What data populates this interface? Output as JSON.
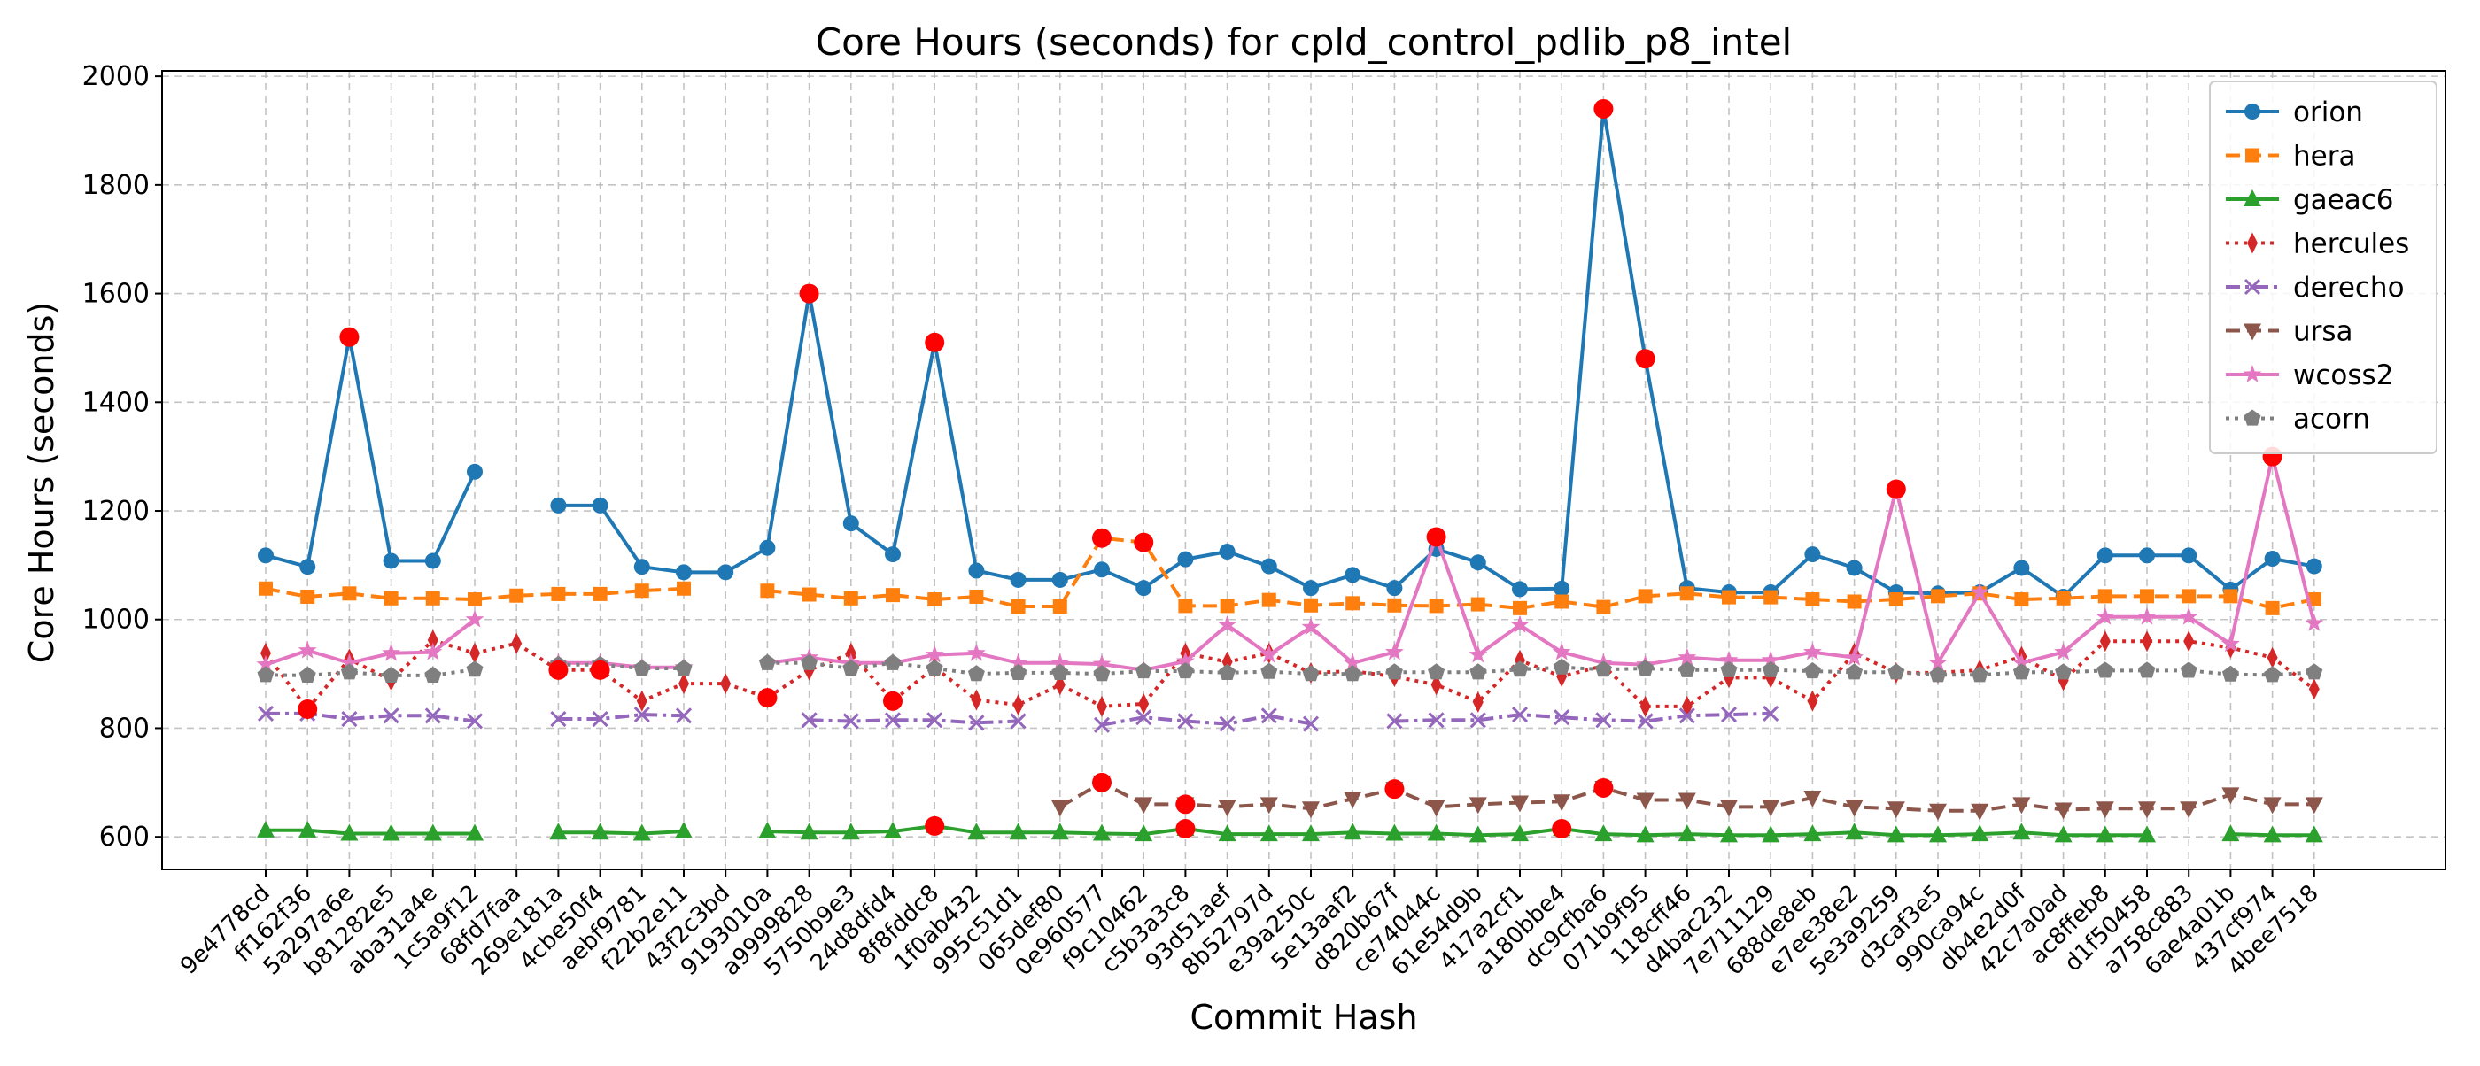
{
  "chart_data": {
    "type": "line",
    "title": "Core Hours (seconds) for cpld_control_pdlib_p8_intel",
    "xlabel": "Commit Hash",
    "ylabel": "Core Hours (seconds)",
    "ylim": [
      540,
      2010
    ],
    "yticks": [
      600,
      800,
      1000,
      1200,
      1400,
      1600,
      1800,
      2000
    ],
    "grid": true,
    "legend_position": "top-right",
    "categories": [
      "9e4778cd",
      "ff162f36",
      "5a297a6e",
      "b81282e5",
      "aba31a4e",
      "1c5a9f12",
      "68fd7faa",
      "269e181a",
      "4cbe50f4",
      "aebf9781",
      "f22b2e11",
      "43f2c3bd",
      "9193010a",
      "a9999828",
      "5750b9e3",
      "24d8dfd4",
      "8f8fddc8",
      "1f0ab432",
      "995c51d1",
      "065def80",
      "0e960577",
      "f9c10462",
      "c5b3a3c8",
      "93d51aef",
      "8b52797d",
      "e39a250c",
      "5e13aaf2",
      "d820b67f",
      "ce74044c",
      "61e54d9b",
      "417a2cf1",
      "a180bbe4",
      "dc9cfba6",
      "071b9f95",
      "118cff46",
      "d4bac232",
      "7e711129",
      "688de8eb",
      "e7ee38e2",
      "5e3a9259",
      "d3caf3e5",
      "990ca94c",
      "db4e2d0f",
      "42c7a0ad",
      "ac8ffeb8",
      "d1f50458",
      "a758c883",
      "6ae4a01b",
      "437cf974",
      "4bee7518"
    ],
    "series": [
      {
        "name": "orion",
        "color": "#1f77b4",
        "line": "solid",
        "marker": "circle",
        "values": [
          1118,
          1097,
          1520,
          1108,
          1108,
          1272,
          null,
          1210,
          1210,
          1097,
          1087,
          1087,
          1132,
          1600,
          1177,
          1120,
          1510,
          1090,
          1073,
          1073,
          1092,
          1058,
          1111,
          1125,
          1098,
          1058,
          1082,
          1058,
          1130,
          1105,
          1056,
          1057,
          1940,
          1480,
          1058,
          1050,
          1050,
          1120,
          1095,
          1050,
          1048,
          1050,
          1095,
          1042,
          1118,
          1118,
          1118,
          1055,
          1112,
          1098
        ],
        "anomalies": [
          2,
          13,
          16,
          32,
          33
        ]
      },
      {
        "name": "hera",
        "color": "#ff7f0e",
        "line": "dashed",
        "marker": "square",
        "values": [
          1057,
          1042,
          1048,
          1039,
          1039,
          1037,
          1044,
          1047,
          1047,
          1053,
          1057,
          null,
          1053,
          1046,
          1039,
          1045,
          1037,
          1042,
          1024,
          1024,
          1150,
          1142,
          1025,
          1025,
          1036,
          1026,
          1030,
          1026,
          1025,
          1028,
          1021,
          1033,
          1023,
          1043,
          1048,
          1041,
          1041,
          1037,
          1033,
          1037,
          1043,
          1048,
          1037,
          1039,
          1043,
          1043,
          1043,
          1043,
          1021,
          1037
        ],
        "anomalies": [
          20,
          21
        ]
      },
      {
        "name": "gaeac6",
        "color": "#2ca02c",
        "line": "solid",
        "marker": "triangle-up",
        "values": [
          612,
          612,
          606,
          606,
          606,
          606,
          null,
          608,
          608,
          606,
          610,
          null,
          610,
          608,
          608,
          610,
          620,
          608,
          608,
          608,
          606,
          605,
          615,
          605,
          605,
          605,
          608,
          606,
          606,
          603,
          605,
          615,
          605,
          603,
          605,
          603,
          603,
          605,
          608,
          603,
          603,
          605,
          608,
          603,
          603,
          603,
          null,
          605,
          603,
          603
        ],
        "anomalies": [
          16,
          22,
          31
        ]
      },
      {
        "name": "hercules",
        "color": "#d62728",
        "line": "dotted",
        "marker": "thin-diamond",
        "values": [
          938,
          835,
          927,
          888,
          962,
          938,
          956,
          907,
          907,
          850,
          882,
          882,
          856,
          907,
          938,
          850,
          912,
          852,
          843,
          880,
          840,
          845,
          938,
          922,
          938,
          902,
          905,
          895,
          880,
          848,
          925,
          895,
          915,
          840,
          840,
          893,
          893,
          850,
          938,
          902,
          902,
          907,
          932,
          888,
          960,
          960,
          960,
          948,
          930,
          872
        ],
        "anomalies": [
          1,
          7,
          8,
          12,
          15
        ]
      },
      {
        "name": "derecho",
        "color": "#9467bd",
        "line": "dashdot",
        "marker": "x",
        "values": [
          827,
          827,
          817,
          823,
          823,
          813,
          null,
          817,
          817,
          825,
          823,
          null,
          null,
          815,
          813,
          815,
          815,
          810,
          813,
          null,
          806,
          820,
          813,
          808,
          823,
          808,
          null,
          813,
          815,
          815,
          825,
          820,
          815,
          813,
          823,
          825,
          827,
          null,
          null,
          null,
          null,
          null,
          null,
          null,
          null,
          null,
          null,
          null,
          null,
          null
        ],
        "anomalies": []
      },
      {
        "name": "ursa",
        "color": "#8c564b",
        "line": "dashed",
        "marker": "triangle-down",
        "values": [
          null,
          null,
          null,
          null,
          null,
          null,
          null,
          null,
          null,
          null,
          null,
          null,
          null,
          null,
          null,
          null,
          null,
          null,
          null,
          655,
          700,
          660,
          660,
          655,
          660,
          652,
          670,
          688,
          655,
          660,
          663,
          665,
          690,
          668,
          668,
          655,
          655,
          672,
          655,
          652,
          648,
          648,
          660,
          650,
          652,
          652,
          652,
          678,
          660,
          660
        ],
        "anomalies": [
          20,
          22,
          27,
          32
        ]
      },
      {
        "name": "wcoss2",
        "color": "#e377c2",
        "line": "solid",
        "marker": "star",
        "values": [
          917,
          943,
          920,
          938,
          940,
          1000,
          null,
          920,
          920,
          912,
          912,
          null,
          920,
          930,
          920,
          920,
          935,
          938,
          920,
          920,
          918,
          907,
          923,
          990,
          935,
          986,
          920,
          940,
          1152,
          935,
          990,
          940,
          920,
          917,
          930,
          925,
          925,
          940,
          930,
          1240,
          920,
          1050,
          920,
          940,
          1005,
          1005,
          1005,
          955,
          1300,
          993
        ],
        "anomalies": [
          28,
          39,
          48
        ]
      },
      {
        "name": "acorn",
        "color": "#7f7f7f",
        "line": "dotted",
        "marker": "pentagon",
        "values": [
          898,
          897,
          903,
          897,
          897,
          908,
          null,
          917,
          917,
          910,
          910,
          null,
          920,
          920,
          910,
          920,
          910,
          900,
          902,
          902,
          900,
          905,
          905,
          902,
          904,
          900,
          900,
          903,
          903,
          903,
          908,
          912,
          908,
          910,
          907,
          907,
          907,
          905,
          903,
          903,
          898,
          898,
          903,
          903,
          906,
          906,
          906,
          899,
          898,
          903
        ],
        "anomalies": []
      }
    ],
    "anomaly_marker": {
      "color": "#ff0000",
      "shape": "circle"
    }
  }
}
